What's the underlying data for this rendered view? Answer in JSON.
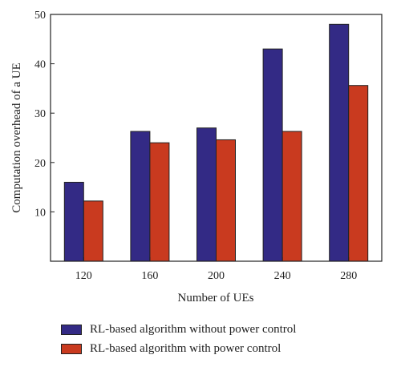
{
  "chart_data": {
    "type": "bar",
    "xlabel": "Number of UEs",
    "ylabel": "Computation overhead of a UE",
    "categories": [
      "120",
      "160",
      "200",
      "240",
      "280"
    ],
    "ylim": [
      0,
      50
    ],
    "yticks": [
      10,
      20,
      30,
      40,
      50
    ],
    "grid": false,
    "legend_position": "bottom",
    "series": [
      {
        "name": "RL-based algorithm without power control",
        "color": "#332a85",
        "values": [
          16,
          26.3,
          27,
          43,
          48
        ]
      },
      {
        "name": "RL-based algorithm with power control",
        "color": "#c93a1f",
        "values": [
          12.2,
          24,
          24.6,
          26.3,
          35.6
        ]
      }
    ]
  }
}
